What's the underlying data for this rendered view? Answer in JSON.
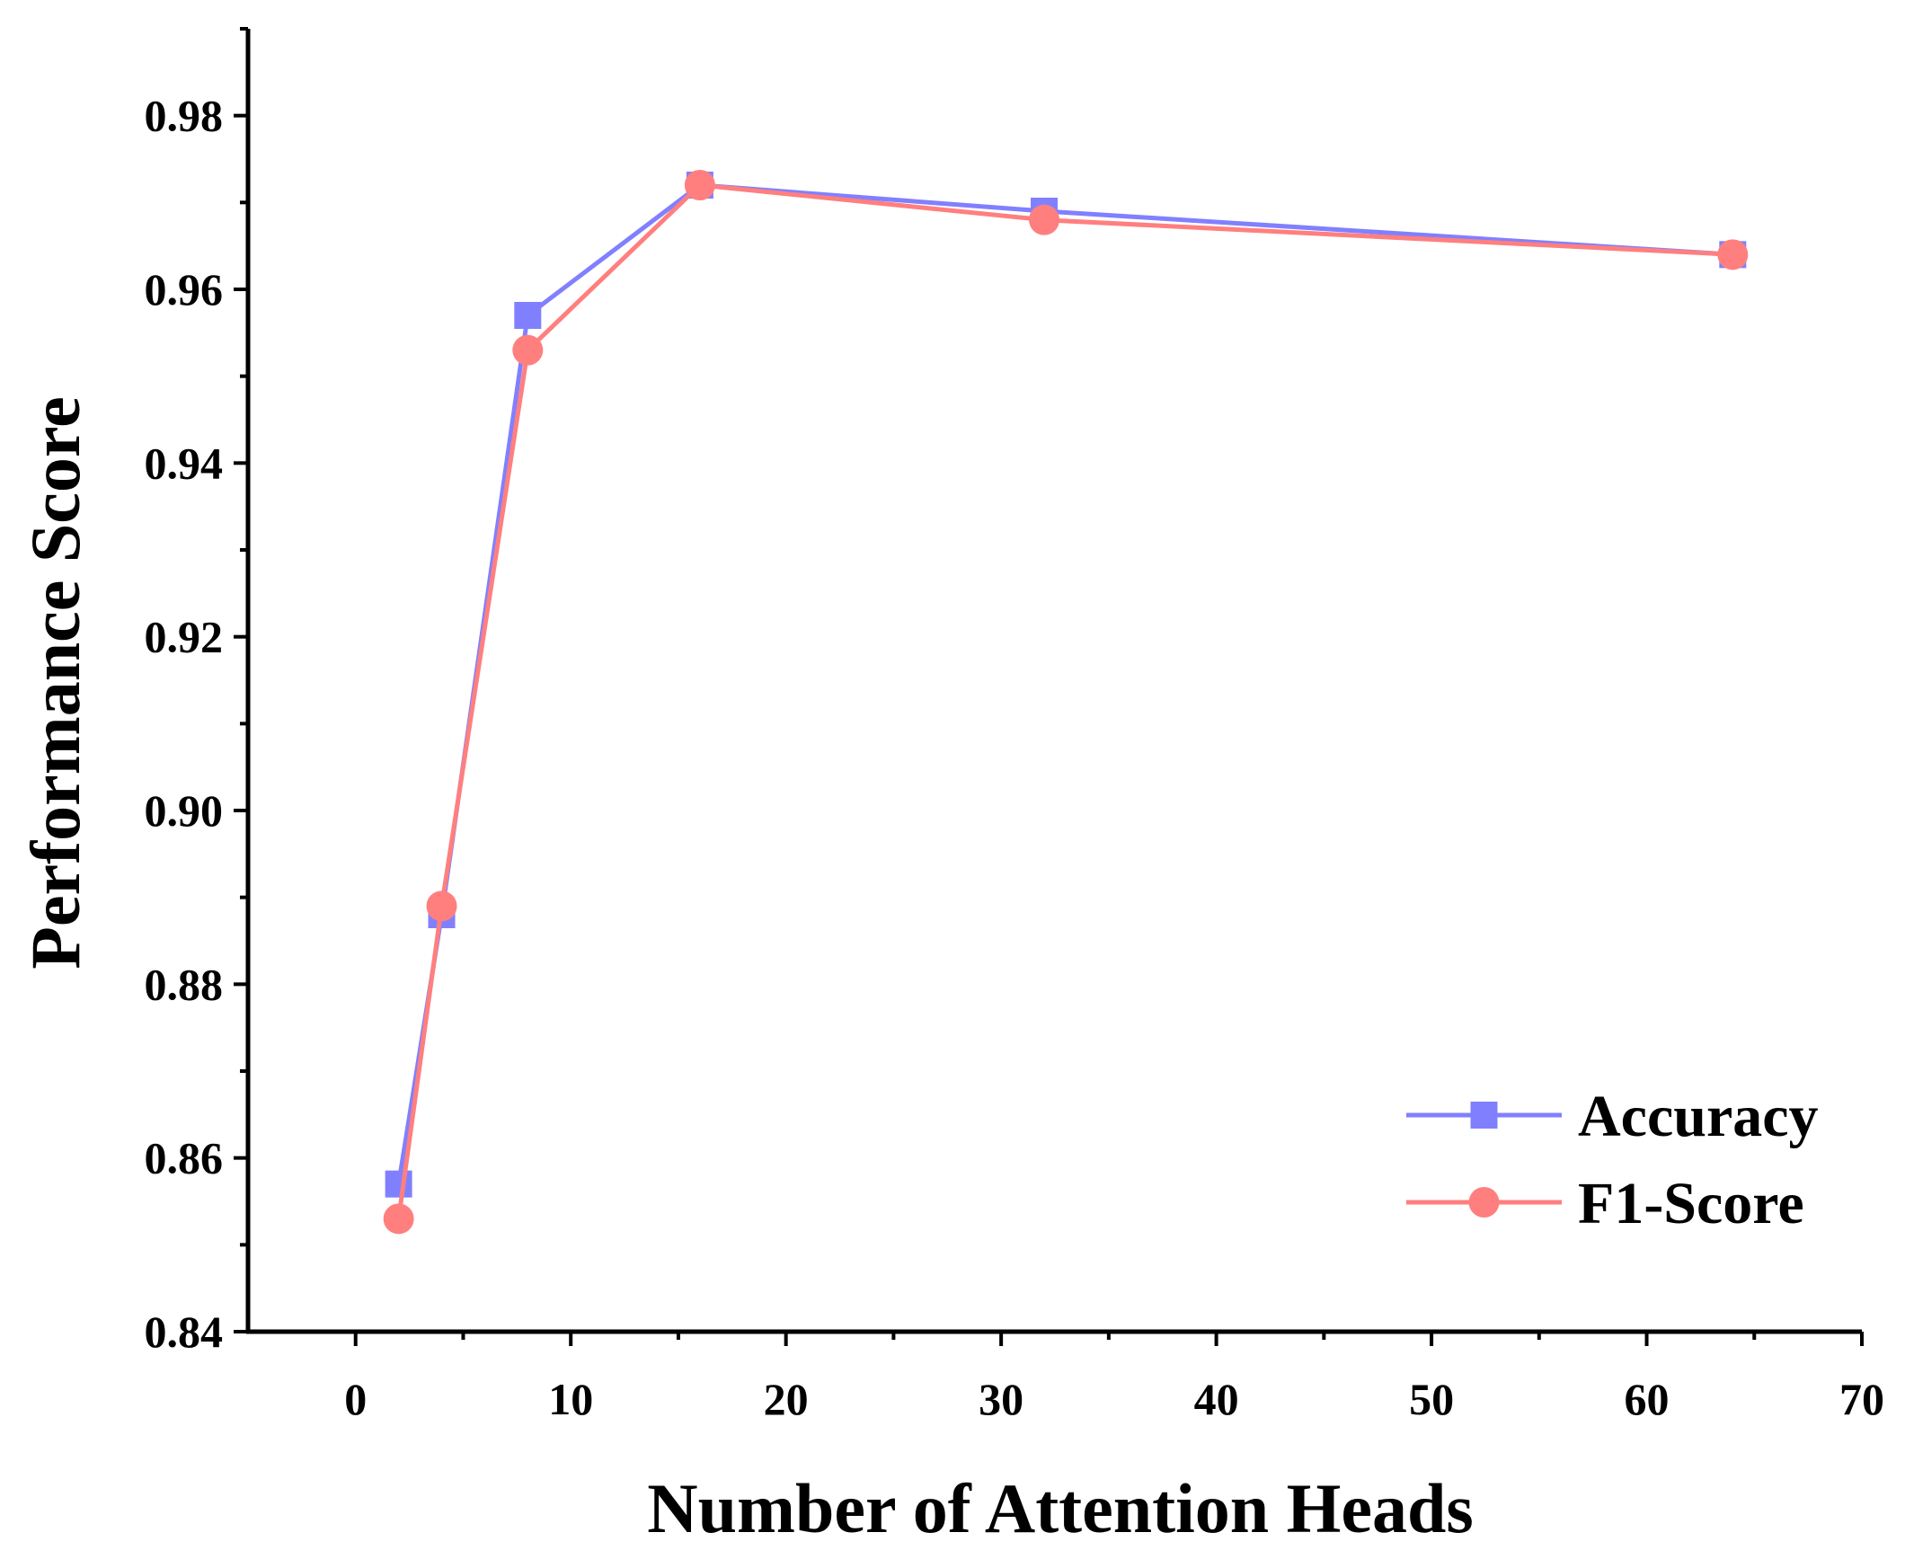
{
  "chart_data": {
    "type": "line",
    "title": "",
    "xlabel": "Number of Attention Heads",
    "ylabel": "Performance Score",
    "xlim": [
      -5,
      70
    ],
    "ylim": [
      0.84,
      0.99
    ],
    "x_ticks": [
      0,
      10,
      20,
      30,
      40,
      50,
      60,
      70
    ],
    "x_tick_labels": [
      "0",
      "10",
      "20",
      "30",
      "40",
      "50",
      "60",
      "70"
    ],
    "y_ticks": [
      0.84,
      0.86,
      0.88,
      0.9,
      0.92,
      0.94,
      0.96,
      0.98
    ],
    "y_tick_labels": [
      "0.84",
      "0.86",
      "0.88",
      "0.90",
      "0.92",
      "0.94",
      "0.96",
      "0.98"
    ],
    "grid": false,
    "legend_position": "bottom-right",
    "x": [
      2,
      4,
      8,
      16,
      32,
      64
    ],
    "series": [
      {
        "name": "Accuracy",
        "values": [
          0.857,
          0.888,
          0.957,
          0.972,
          0.969,
          0.964
        ],
        "color": "#8080ff",
        "marker": "square"
      },
      {
        "name": "F1-Score",
        "values": [
          0.853,
          0.889,
          0.953,
          0.972,
          0.968,
          0.964
        ],
        "color": "#ff7f7f",
        "marker": "circle"
      }
    ]
  }
}
